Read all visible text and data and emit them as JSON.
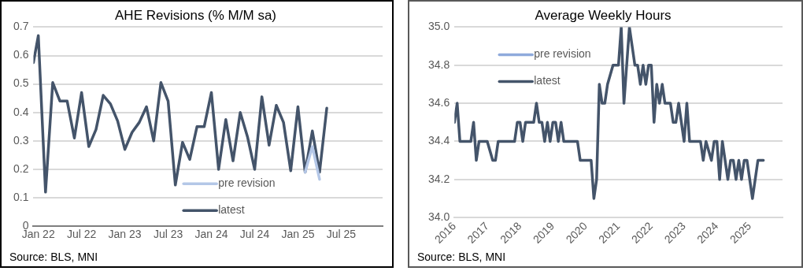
{
  "chart_data": [
    {
      "type": "line",
      "title": "AHE Revisions (% M/M sa)",
      "legend": "bottom",
      "grid": "y",
      "annotations": [
        "Source: BLS, MNI"
      ],
      "xlim": [
        "2021-12-11",
        "2025-12-24"
      ],
      "xticks": [
        {
          "value": "2022-01",
          "label": "Jan 22"
        },
        {
          "value": "2022-07",
          "label": "Jul 22"
        },
        {
          "value": "2023-01",
          "label": "Jan 23"
        },
        {
          "value": "2023-07",
          "label": "Jul 23"
        },
        {
          "value": "2024-01",
          "label": "Jan 24"
        },
        {
          "value": "2024-07",
          "label": "Jul 24"
        },
        {
          "value": "2025-01",
          "label": "Jan 25"
        },
        {
          "value": "2025-07",
          "label": "Jul 25"
        }
      ],
      "ylim": [
        0,
        0.7
      ],
      "yticks": [
        0,
        0.1,
        0.2,
        0.3,
        0.4,
        0.5,
        0.6,
        0.7
      ],
      "series": [
        {
          "name": "pre revision",
          "color": "#b4c7e7",
          "x": [
            "2025-02",
            "2025-03",
            "2025-04"
          ],
          "values": [
            0.19,
            0.28,
            0.165
          ]
        },
        {
          "name": "latest",
          "color": "#44546a",
          "x": [
            "2021-12-11",
            "2022-01",
            "2022-02",
            "2022-03",
            "2022-04",
            "2022-05",
            "2022-06",
            "2022-07",
            "2022-08",
            "2022-09",
            "2022-10",
            "2022-11",
            "2022-12",
            "2023-01",
            "2023-02",
            "2023-03",
            "2023-04",
            "2023-05",
            "2023-06",
            "2023-07",
            "2023-08",
            "2023-09",
            "2023-10",
            "2023-11",
            "2023-12",
            "2024-01",
            "2024-02",
            "2024-03",
            "2024-04",
            "2024-05",
            "2024-06",
            "2024-07",
            "2024-08",
            "2024-09",
            "2024-10",
            "2024-11",
            "2024-12",
            "2025-01",
            "2025-02",
            "2025-03",
            "2025-04",
            "2025-05"
          ],
          "values": [
            0.575,
            0.67,
            0.12,
            0.505,
            0.44,
            0.44,
            0.31,
            0.47,
            0.28,
            0.34,
            0.46,
            0.43,
            0.37,
            0.27,
            0.33,
            0.365,
            0.42,
            0.3,
            0.505,
            0.44,
            0.145,
            0.295,
            0.235,
            0.35,
            0.35,
            0.47,
            0.2,
            0.375,
            0.23,
            0.4,
            0.315,
            0.2,
            0.455,
            0.285,
            0.425,
            0.365,
            0.195,
            0.42,
            0.19,
            0.335,
            0.19,
            0.415
          ]
        }
      ]
    },
    {
      "type": "line",
      "title": "Average Weekly Hours",
      "legend": "top left",
      "grid": "y",
      "annotations": [
        "Source: BLS, MNI"
      ],
      "xlim": [
        "2016-01",
        "2026-01"
      ],
      "xticks": [
        {
          "value": "2016-01",
          "label": "2016"
        },
        {
          "value": "2017-01",
          "label": "2017"
        },
        {
          "value": "2018-01",
          "label": "2018"
        },
        {
          "value": "2019-01",
          "label": "2019"
        },
        {
          "value": "2020-01",
          "label": "2020"
        },
        {
          "value": "2021-01",
          "label": "2021"
        },
        {
          "value": "2022-01",
          "label": "2022"
        },
        {
          "value": "2023-01",
          "label": "2023"
        },
        {
          "value": "2024-01",
          "label": "2024"
        },
        {
          "value": "2025-01",
          "label": "2025"
        }
      ],
      "ylim": [
        34,
        35
      ],
      "yticks": [
        {
          "value": 34,
          "label": "34.0"
        },
        {
          "value": 34.2,
          "label": "34.2"
        },
        {
          "value": 34.4,
          "label": "34.4"
        },
        {
          "value": 34.6,
          "label": "34.6"
        },
        {
          "value": 34.8,
          "label": "34.8"
        },
        {
          "value": 35,
          "label": "35.0"
        }
      ],
      "series": [
        {
          "name": "pre revision",
          "color": "#8faadc"
        },
        {
          "name": "latest",
          "color": "#44546a",
          "x": [
            "2016-01",
            "2016-02",
            "2016-03",
            "2016-07",
            "2016-08",
            "2016-09",
            "2016-10",
            "2017-01",
            "2017-03",
            "2017-04",
            "2017-05",
            "2017-11",
            "2017-12",
            "2018-01",
            "2018-02",
            "2018-03",
            "2018-06",
            "2018-07",
            "2018-08",
            "2018-09",
            "2018-10",
            "2018-11",
            "2018-12",
            "2019-01",
            "2019-02",
            "2019-03",
            "2019-04",
            "2019-05",
            "2019-10",
            "2019-11",
            "2020-03",
            "2020-04",
            "2020-05",
            "2020-06",
            "2020-07",
            "2020-08",
            "2020-09",
            "2020-11",
            "2021-01",
            "2021-02",
            "2021-03",
            "2021-05",
            "2021-07",
            "2021-08",
            "2021-09",
            "2021-10",
            "2021-11",
            "2021-12",
            "2022-01",
            "2022-02",
            "2022-03",
            "2022-04",
            "2022-05",
            "2022-06",
            "2022-08",
            "2022-09",
            "2022-10",
            "2022-11",
            "2023-01",
            "2023-02",
            "2023-03",
            "2023-07",
            "2023-08",
            "2023-09",
            "2023-11",
            "2023-12",
            "2024-01",
            "2024-02",
            "2024-03",
            "2024-05",
            "2024-06",
            "2024-07",
            "2024-08",
            "2024-09",
            "2024-10",
            "2024-11",
            "2024-12",
            "2025-02",
            "2025-04",
            "2025-06"
          ],
          "values": [
            34.5,
            34.6,
            34.4,
            34.4,
            34.5,
            34.3,
            34.4,
            34.4,
            34.3,
            34.3,
            34.4,
            34.4,
            34.5,
            34.5,
            34.4,
            34.5,
            34.5,
            34.6,
            34.5,
            34.5,
            34.4,
            34.5,
            34.4,
            34.5,
            34.5,
            34.4,
            34.5,
            34.4,
            34.4,
            34.3,
            34.3,
            34.1,
            34.2,
            34.7,
            34.6,
            34.6,
            34.7,
            34.8,
            34.8,
            35.0,
            34.6,
            35.0,
            34.8,
            34.8,
            34.7,
            34.8,
            34.7,
            34.8,
            34.8,
            34.5,
            34.7,
            34.6,
            34.7,
            34.6,
            34.6,
            34.5,
            34.5,
            34.6,
            34.4,
            34.6,
            34.4,
            34.4,
            34.3,
            34.4,
            34.3,
            34.4,
            34.4,
            34.2,
            34.4,
            34.2,
            34.3,
            34.3,
            34.2,
            34.3,
            34.2,
            34.3,
            34.3,
            34.1,
            34.3,
            34.3
          ]
        }
      ]
    }
  ]
}
